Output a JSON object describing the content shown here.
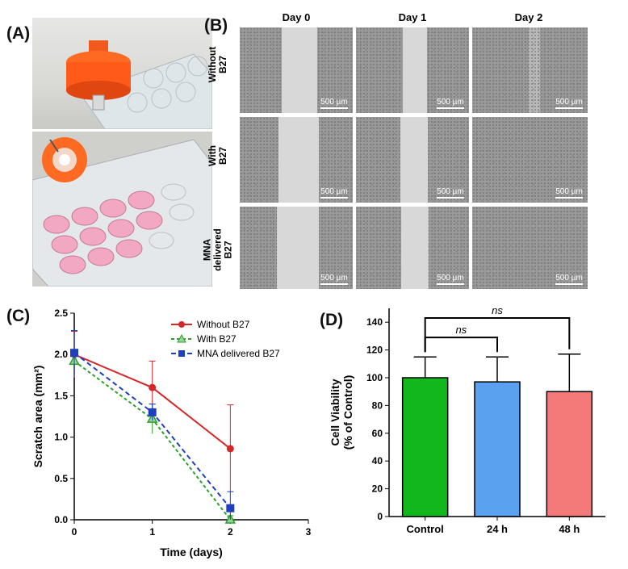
{
  "panel_a": {
    "label": "(A)"
  },
  "panel_b": {
    "label": "(B)",
    "columns": [
      "Day 0",
      "Day 1",
      "Day 2"
    ],
    "rows": [
      {
        "lines": [
          "Without",
          "B27"
        ]
      },
      {
        "lines": [
          "With",
          "B27"
        ]
      },
      {
        "lines": [
          "MNA",
          "delivered",
          "B27"
        ]
      }
    ],
    "scale_bar": "500 µm"
  },
  "colors": {
    "without": "#d62728",
    "with": "#2ca02c",
    "mna": "#1f3fbf",
    "bar_control": "#12b81b",
    "bar_24h": "#5aa2f0",
    "bar_48h": "#f47a7a"
  },
  "chart_data": [
    {
      "panel": "(C)",
      "type": "line",
      "xlabel": "Time (days)",
      "ylabel": "Scratch area (mm²)",
      "xlim": [
        0,
        3
      ],
      "ylim": [
        0,
        2.5
      ],
      "xticks": [
        "0",
        "1",
        "2",
        "3"
      ],
      "yticks": [
        "0.0",
        "0.5",
        "1.0",
        "1.5",
        "2.0",
        "2.5"
      ],
      "legend_position": "top-right",
      "series": [
        {
          "name": "Without B27",
          "x": [
            0,
            1,
            2
          ],
          "y": [
            2.0,
            1.6,
            0.86
          ],
          "err": [
            0.28,
            0.32,
            0.53
          ]
        },
        {
          "name": "With B27",
          "x": [
            0,
            1,
            2
          ],
          "y": [
            1.92,
            1.22,
            0.0
          ],
          "err": [
            0.1,
            0.18,
            0.05
          ]
        },
        {
          "name": "MNA delivered B27",
          "x": [
            0,
            1,
            2
          ],
          "y": [
            2.02,
            1.3,
            0.14
          ],
          "err": [
            0.27,
            0.1,
            0.2
          ]
        }
      ]
    },
    {
      "panel": "(D)",
      "type": "bar",
      "ylabel_lines": [
        "Cell Viability",
        "(% of Control)"
      ],
      "ylim": [
        0,
        150
      ],
      "yticks": [
        "0",
        "20",
        "40",
        "60",
        "80",
        "100",
        "120",
        "140"
      ],
      "categories": [
        "Control",
        "24 h",
        "48 h"
      ],
      "values": [
        100,
        97,
        90
      ],
      "errors": [
        15,
        18,
        27
      ],
      "significance": [
        {
          "from": 0,
          "to": 1,
          "label": "ns"
        },
        {
          "from": 0,
          "to": 2,
          "label": "ns"
        }
      ]
    }
  ]
}
